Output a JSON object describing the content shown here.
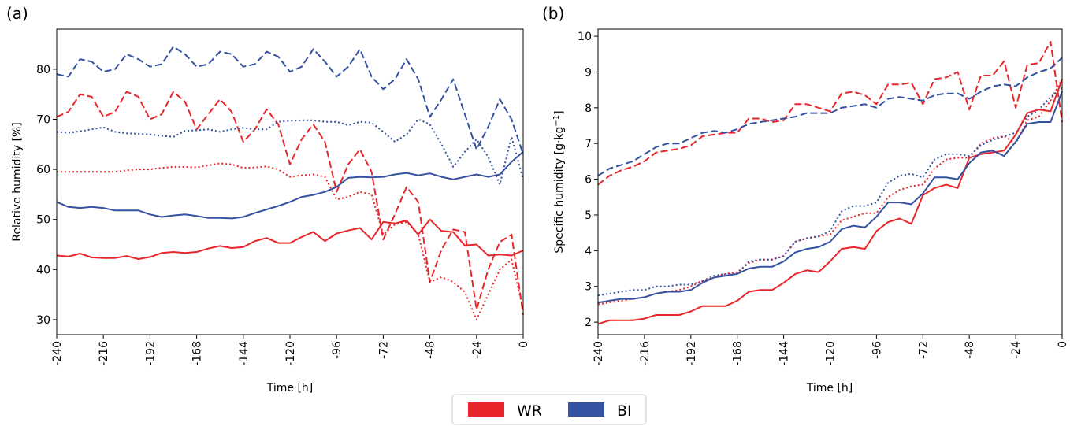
{
  "colors": {
    "WR": "#e8262b",
    "BI": "#3552a2"
  },
  "legend": {
    "items": [
      {
        "label": "WR",
        "color": "#e8262b"
      },
      {
        "label": "BI",
        "color": "#3552a2"
      }
    ],
    "placement": "bottom-center"
  },
  "chart_data": [
    {
      "type": "line",
      "panel_label": "(a)",
      "xlabel": "Time [h]",
      "ylabel": "Relative humidity [%]",
      "xlim": [
        -240,
        0
      ],
      "ylim": [
        27,
        88
      ],
      "xticks": [
        "-240",
        "-216",
        "-192",
        "-168",
        "-144",
        "-120",
        "-96",
        "-72",
        "-48",
        "-24",
        "0"
      ],
      "yticks": [
        "30",
        "40",
        "50",
        "60",
        "70",
        "80"
      ],
      "x": [
        -240,
        -234,
        -228,
        -222,
        -216,
        -210,
        -204,
        -198,
        -192,
        -186,
        -180,
        -174,
        -168,
        -162,
        -156,
        -150,
        -144,
        -138,
        -132,
        -126,
        -120,
        -114,
        -108,
        -102,
        -96,
        -90,
        -84,
        -78,
        -72,
        -66,
        -60,
        -54,
        -48,
        -42,
        -36,
        -30,
        -24,
        -18,
        -12,
        -6,
        0
      ],
      "series": [
        {
          "name": "WR",
          "color": "#e8262b",
          "style": "dashed",
          "values": [
            70.5,
            71.5,
            75,
            74.5,
            70.5,
            71.5,
            75.5,
            74.5,
            70,
            71,
            75.5,
            73.5,
            68,
            71,
            74,
            71.5,
            65.5,
            68,
            72,
            69,
            61,
            66,
            69,
            65.5,
            55.5,
            61,
            64,
            59.5,
            46,
            51,
            56.5,
            53.5,
            37.5,
            44,
            48,
            47.5,
            32,
            40,
            45.5,
            47,
            31
          ]
        },
        {
          "name": "BI",
          "color": "#3552a2",
          "style": "dashed",
          "values": [
            79,
            78.5,
            82,
            81.5,
            79.5,
            80,
            83,
            82,
            80.5,
            81,
            84.5,
            83,
            80.5,
            81,
            83.5,
            83,
            80.5,
            81,
            83.5,
            82.5,
            79.5,
            80.5,
            84,
            81.5,
            78.5,
            80.5,
            84,
            78.5,
            76,
            78,
            82,
            78,
            70.5,
            74,
            78,
            71,
            64,
            68.5,
            74,
            70,
            63
          ]
        },
        {
          "name": "WR",
          "color": "#e8262b",
          "style": "dotted",
          "values": [
            59.5,
            59.5,
            59.5,
            59.5,
            59.5,
            59.5,
            59.8,
            60,
            60,
            60.3,
            60.5,
            60.5,
            60.4,
            60.8,
            61.2,
            61,
            60.3,
            60.4,
            60.6,
            60,
            58.5,
            58.8,
            59,
            58.5,
            54,
            54.5,
            55.5,
            55,
            47,
            49,
            49.5,
            47,
            37.5,
            38.5,
            37.5,
            35.5,
            30,
            35,
            40,
            42,
            32
          ]
        },
        {
          "name": "BI",
          "color": "#3552a2",
          "style": "dotted",
          "values": [
            67.5,
            67.3,
            67.6,
            68,
            68.4,
            67.5,
            67.2,
            67.1,
            67,
            66.7,
            66.5,
            67.7,
            67.8,
            68,
            67.5,
            68,
            68.3,
            68,
            68,
            69.5,
            69.7,
            69.8,
            69.8,
            69.5,
            69.5,
            68.8,
            69.5,
            69.3,
            67.5,
            65.5,
            67,
            70,
            69,
            65,
            60.5,
            63.5,
            66,
            62.5,
            57,
            66.5,
            58
          ]
        },
        {
          "name": "WR",
          "color": "#e8262b",
          "style": "solid",
          "values": [
            42.8,
            42.6,
            43.2,
            42.4,
            42.3,
            42.3,
            42.7,
            42.1,
            42.5,
            43.3,
            43.5,
            43.3,
            43.5,
            44.2,
            44.7,
            44.3,
            44.5,
            45.7,
            46.3,
            45.3,
            45.3,
            46.5,
            47.5,
            45.7,
            47.2,
            47.8,
            48.3,
            46,
            49.5,
            49.2,
            49.8,
            47,
            50,
            47.7,
            47.5,
            44.8,
            45,
            42.8,
            43,
            42.8,
            43.8
          ]
        },
        {
          "name": "BI",
          "color": "#3552a2",
          "style": "solid",
          "values": [
            53.5,
            52.5,
            52.3,
            52.5,
            52.3,
            51.8,
            51.8,
            51.8,
            51,
            50.5,
            50.8,
            51,
            50.7,
            50.3,
            50.3,
            50.2,
            50.5,
            51.3,
            52,
            52.7,
            53.5,
            54.5,
            54.9,
            55.5,
            56.5,
            58.3,
            58.5,
            58.4,
            58.5,
            59,
            59.3,
            58.8,
            59.2,
            58.5,
            58,
            58.5,
            59,
            58.5,
            59,
            61.5,
            63.5
          ]
        }
      ]
    },
    {
      "type": "line",
      "panel_label": "(b)",
      "xlabel": "Time [h]",
      "ylabel": "Specific humidity [g·kg⁻¹]",
      "xlim": [
        -240,
        0
      ],
      "ylim": [
        1.65,
        10.2
      ],
      "xticks": [
        "-240",
        "-216",
        "-192",
        "-168",
        "-144",
        "-120",
        "-96",
        "-72",
        "-48",
        "-24",
        "0"
      ],
      "yticks": [
        "2",
        "3",
        "4",
        "5",
        "6",
        "7",
        "8",
        "9",
        "10"
      ],
      "x": [
        -240,
        -234,
        -228,
        -222,
        -216,
        -210,
        -204,
        -198,
        -192,
        -186,
        -180,
        -174,
        -168,
        -162,
        -156,
        -150,
        -144,
        -138,
        -132,
        -126,
        -120,
        -114,
        -108,
        -102,
        -96,
        -90,
        -84,
        -78,
        -72,
        -66,
        -60,
        -54,
        -48,
        -42,
        -36,
        -30,
        -24,
        -18,
        -12,
        -6,
        0
      ],
      "series": [
        {
          "name": "WR",
          "color": "#e8262b",
          "style": "dashed",
          "values": [
            5.85,
            6.1,
            6.25,
            6.35,
            6.5,
            6.75,
            6.8,
            6.85,
            6.95,
            7.2,
            7.25,
            7.3,
            7.3,
            7.7,
            7.7,
            7.6,
            7.65,
            8.1,
            8.1,
            8.0,
            7.9,
            8.4,
            8.45,
            8.35,
            8.1,
            8.65,
            8.65,
            8.7,
            8.1,
            8.8,
            8.85,
            9.0,
            7.95,
            8.9,
            8.9,
            9.3,
            8.0,
            9.2,
            9.25,
            9.85,
            7.6
          ]
        },
        {
          "name": "BI",
          "color": "#3552a2",
          "style": "dashed",
          "values": [
            6.1,
            6.3,
            6.4,
            6.5,
            6.7,
            6.9,
            7.0,
            7.0,
            7.15,
            7.3,
            7.35,
            7.3,
            7.4,
            7.55,
            7.6,
            7.65,
            7.7,
            7.75,
            7.85,
            7.85,
            7.85,
            8.0,
            8.05,
            8.1,
            8.0,
            8.25,
            8.3,
            8.25,
            8.2,
            8.35,
            8.4,
            8.4,
            8.25,
            8.45,
            8.6,
            8.65,
            8.6,
            8.85,
            9.0,
            9.1,
            9.4
          ]
        },
        {
          "name": "WR",
          "color": "#e8262b",
          "style": "dotted",
          "values": [
            2.5,
            2.55,
            2.6,
            2.65,
            2.7,
            2.8,
            2.85,
            2.9,
            3.0,
            3.15,
            3.25,
            3.35,
            3.4,
            3.65,
            3.75,
            3.75,
            3.85,
            4.25,
            4.35,
            4.4,
            4.45,
            4.85,
            4.95,
            5.05,
            5.05,
            5.5,
            5.7,
            5.8,
            5.85,
            6.3,
            6.55,
            6.6,
            6.6,
            7.0,
            7.15,
            7.2,
            7.0,
            7.65,
            7.75,
            8.2,
            8.8
          ]
        },
        {
          "name": "BI",
          "color": "#3552a2",
          "style": "dotted",
          "values": [
            2.75,
            2.8,
            2.85,
            2.9,
            2.9,
            3.0,
            3.0,
            3.05,
            3.05,
            3.15,
            3.3,
            3.35,
            3.35,
            3.7,
            3.75,
            3.75,
            3.85,
            4.25,
            4.35,
            4.4,
            4.55,
            5.1,
            5.25,
            5.25,
            5.35,
            5.9,
            6.1,
            6.15,
            6.05,
            6.55,
            6.7,
            6.7,
            6.65,
            6.95,
            7.1,
            7.2,
            7.3,
            7.75,
            7.95,
            8.3,
            8.55
          ]
        },
        {
          "name": "WR",
          "color": "#e8262b",
          "style": "solid",
          "values": [
            1.95,
            2.05,
            2.05,
            2.05,
            2.1,
            2.2,
            2.2,
            2.2,
            2.3,
            2.45,
            2.45,
            2.45,
            2.6,
            2.85,
            2.9,
            2.9,
            3.1,
            3.35,
            3.45,
            3.4,
            3.7,
            4.05,
            4.1,
            4.05,
            4.55,
            4.8,
            4.9,
            4.75,
            5.55,
            5.75,
            5.85,
            5.75,
            6.6,
            6.7,
            6.75,
            6.8,
            7.25,
            7.85,
            7.95,
            7.9,
            8.8
          ]
        },
        {
          "name": "BI",
          "color": "#3552a2",
          "style": "solid",
          "values": [
            2.55,
            2.6,
            2.65,
            2.65,
            2.7,
            2.8,
            2.85,
            2.85,
            2.9,
            3.1,
            3.25,
            3.3,
            3.35,
            3.5,
            3.55,
            3.55,
            3.7,
            3.95,
            4.05,
            4.1,
            4.25,
            4.6,
            4.7,
            4.65,
            4.95,
            5.35,
            5.35,
            5.3,
            5.6,
            6.05,
            6.05,
            6.0,
            6.45,
            6.75,
            6.8,
            6.65,
            7.05,
            7.55,
            7.6,
            7.6,
            8.45
          ]
        }
      ]
    }
  ]
}
